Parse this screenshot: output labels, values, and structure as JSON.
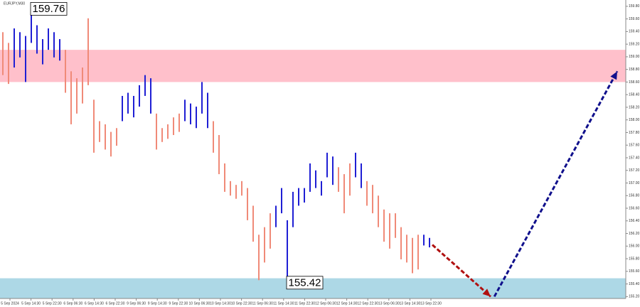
{
  "chart_data": {
    "type": "ohlc-bars",
    "title": "EURJPY,M30",
    "xlim": [
      -0.5,
      109.5
    ],
    "ylim": [
      155.17,
      159.9
    ],
    "xticks": [
      {
        "value": 1.25,
        "label": "5 Sep 2024"
      },
      {
        "value": 4.95,
        "label": "5 Sep 14:30"
      },
      {
        "value": 8.65,
        "label": "5 Sep 22:30"
      },
      {
        "value": 12.35,
        "label": "6 Sep 06:30"
      },
      {
        "value": 16.05,
        "label": "6 Sep 14:30"
      },
      {
        "value": 19.75,
        "label": "6 Sep 22:30"
      },
      {
        "value": 23.45,
        "label": "9 Sep 06:30"
      },
      {
        "value": 27.15,
        "label": "9 Sep 14:30"
      },
      {
        "value": 30.85,
        "label": "9 Sep 22:30"
      },
      {
        "value": 34.55,
        "label": "10 Sep 06:30"
      },
      {
        "value": 38.25,
        "label": "10 Sep 14:30"
      },
      {
        "value": 41.95,
        "label": "10 Sep 22:30"
      },
      {
        "value": 45.65,
        "label": "11 Sep 06:30"
      },
      {
        "value": 49.35,
        "label": "11 Sep 14:30"
      },
      {
        "value": 53.05,
        "label": "11 Sep 22:30"
      },
      {
        "value": 56.75,
        "label": "12 Sep 06:30"
      },
      {
        "value": 60.45,
        "label": "12 Sep 14:30"
      },
      {
        "value": 64.15,
        "label": "12 Sep 22:30"
      },
      {
        "value": 67.85,
        "label": "13 Sep 06:30"
      },
      {
        "value": 71.55,
        "label": "13 Sep 14:30"
      },
      {
        "value": 75.25,
        "label": "13 Sep 22:30"
      }
    ],
    "yticks": [
      {
        "value": 155.2,
        "label": "155.20"
      },
      {
        "value": 155.4,
        "label": "155.40"
      },
      {
        "value": 155.6,
        "label": "155.60"
      },
      {
        "value": 155.8,
        "label": "155.80"
      },
      {
        "value": 156.0,
        "label": "156.00"
      },
      {
        "value": 156.2,
        "label": "156.20"
      },
      {
        "value": 156.4,
        "label": "156.40"
      },
      {
        "value": 156.6,
        "label": "156.60"
      },
      {
        "value": 156.8,
        "label": "156.80"
      },
      {
        "value": 157.0,
        "label": "157.00"
      },
      {
        "value": 157.2,
        "label": "157.20"
      },
      {
        "value": 157.4,
        "label": "157.40"
      },
      {
        "value": 157.6,
        "label": "157.60"
      },
      {
        "value": 157.8,
        "label": "157.80"
      },
      {
        "value": 158.0,
        "label": "158.00"
      },
      {
        "value": 158.2,
        "label": "158.20"
      },
      {
        "value": 158.4,
        "label": "158.40"
      },
      {
        "value": 158.6,
        "label": "158.60"
      },
      {
        "value": 158.8,
        "label": "158.80"
      },
      {
        "value": 159.0,
        "label": "159.00"
      },
      {
        "value": 159.2,
        "label": "159.20"
      },
      {
        "value": 159.4,
        "label": "159.40"
      },
      {
        "value": 159.6,
        "label": "159.60"
      },
      {
        "value": 159.8,
        "label": "159.80"
      }
    ],
    "zones": [
      {
        "from": 158.6,
        "to": 159.11,
        "color": "#ffc0cb"
      },
      {
        "from": 155.17,
        "to": 155.49,
        "color": "#add8e6"
      }
    ],
    "series": [
      {
        "color": "#f08a78",
        "x": [
          0,
          1,
          11,
          12,
          13,
          14,
          15,
          16,
          17,
          18,
          19,
          20,
          27,
          28,
          29,
          30,
          31,
          37,
          38,
          39,
          40,
          41,
          42,
          43,
          44,
          45,
          46,
          47,
          59,
          60,
          61,
          64,
          65,
          66,
          67,
          68,
          69,
          70,
          71,
          72,
          73
        ],
        "high": [
          159.39,
          159.22,
          159.11,
          158.77,
          158.66,
          158.83,
          159.61,
          158.32,
          157.98,
          157.93,
          157.81,
          157.87,
          158.1,
          157.87,
          157.93,
          158.04,
          158.1,
          157.98,
          157.76,
          157.31,
          157.03,
          156.97,
          157.03,
          156.92,
          156.64,
          156.18,
          156.3,
          156.52,
          157.25,
          157.14,
          157.31,
          157.03,
          156.97,
          156.8,
          156.58,
          156.52,
          156.52,
          156.3,
          156.18,
          156.13,
          156.18
        ],
        "low": [
          158.71,
          158.57,
          158.43,
          157.93,
          158.1,
          158.26,
          158.55,
          157.48,
          157.65,
          157.53,
          157.42,
          157.59,
          157.53,
          157.65,
          157.7,
          157.76,
          157.81,
          157.48,
          157.14,
          156.86,
          156.8,
          156.75,
          156.8,
          156.41,
          156.07,
          155.46,
          155.74,
          155.96,
          156.86,
          156.52,
          156.8,
          156.64,
          156.52,
          156.3,
          156.07,
          155.96,
          156.13,
          155.79,
          155.74,
          155.57,
          155.63
        ]
      },
      {
        "color": "#1f1fd4",
        "x": [
          2,
          3,
          4,
          5,
          6,
          7,
          8,
          9,
          10,
          21,
          22,
          23,
          24,
          25,
          26,
          32,
          33,
          34,
          35,
          36,
          48,
          49,
          50,
          51,
          52,
          53,
          54,
          55,
          56,
          57,
          58,
          62,
          63,
          74,
          75
        ],
        "high": [
          159.45,
          159.39,
          159.33,
          159.76,
          159.5,
          159.28,
          159.45,
          159.39,
          159.28,
          158.38,
          158.43,
          158.38,
          158.55,
          158.71,
          158.66,
          158.32,
          158.26,
          158.21,
          158.6,
          158.43,
          156.64,
          156.92,
          156.41,
          156.86,
          156.92,
          156.92,
          157.31,
          157.2,
          157.03,
          157.48,
          157.42,
          157.48,
          157.31,
          156.18,
          156.13
        ],
        "low": [
          158.83,
          158.99,
          158.6,
          159.22,
          159.05,
          158.88,
          159.11,
          158.99,
          158.94,
          157.98,
          158.1,
          158.04,
          158.21,
          158.38,
          158.1,
          157.98,
          157.93,
          157.87,
          158.1,
          157.87,
          156.3,
          156.52,
          155.42,
          156.3,
          156.64,
          156.69,
          156.86,
          156.92,
          156.8,
          157.09,
          156.97,
          157.09,
          156.92,
          156.01,
          155.98
        ]
      }
    ],
    "forecast": [
      {
        "color": "#b01010",
        "x": [
          75.5,
          85.75
        ],
        "y": [
          156.02,
          155.2
        ]
      },
      {
        "color": "#10108c",
        "x": [
          86.4,
          108
        ],
        "y": [
          155.2,
          158.77
        ]
      }
    ],
    "annotations": [
      {
        "value": 159.76,
        "x": 5
      },
      {
        "value": 155.42,
        "x": 50
      }
    ]
  }
}
